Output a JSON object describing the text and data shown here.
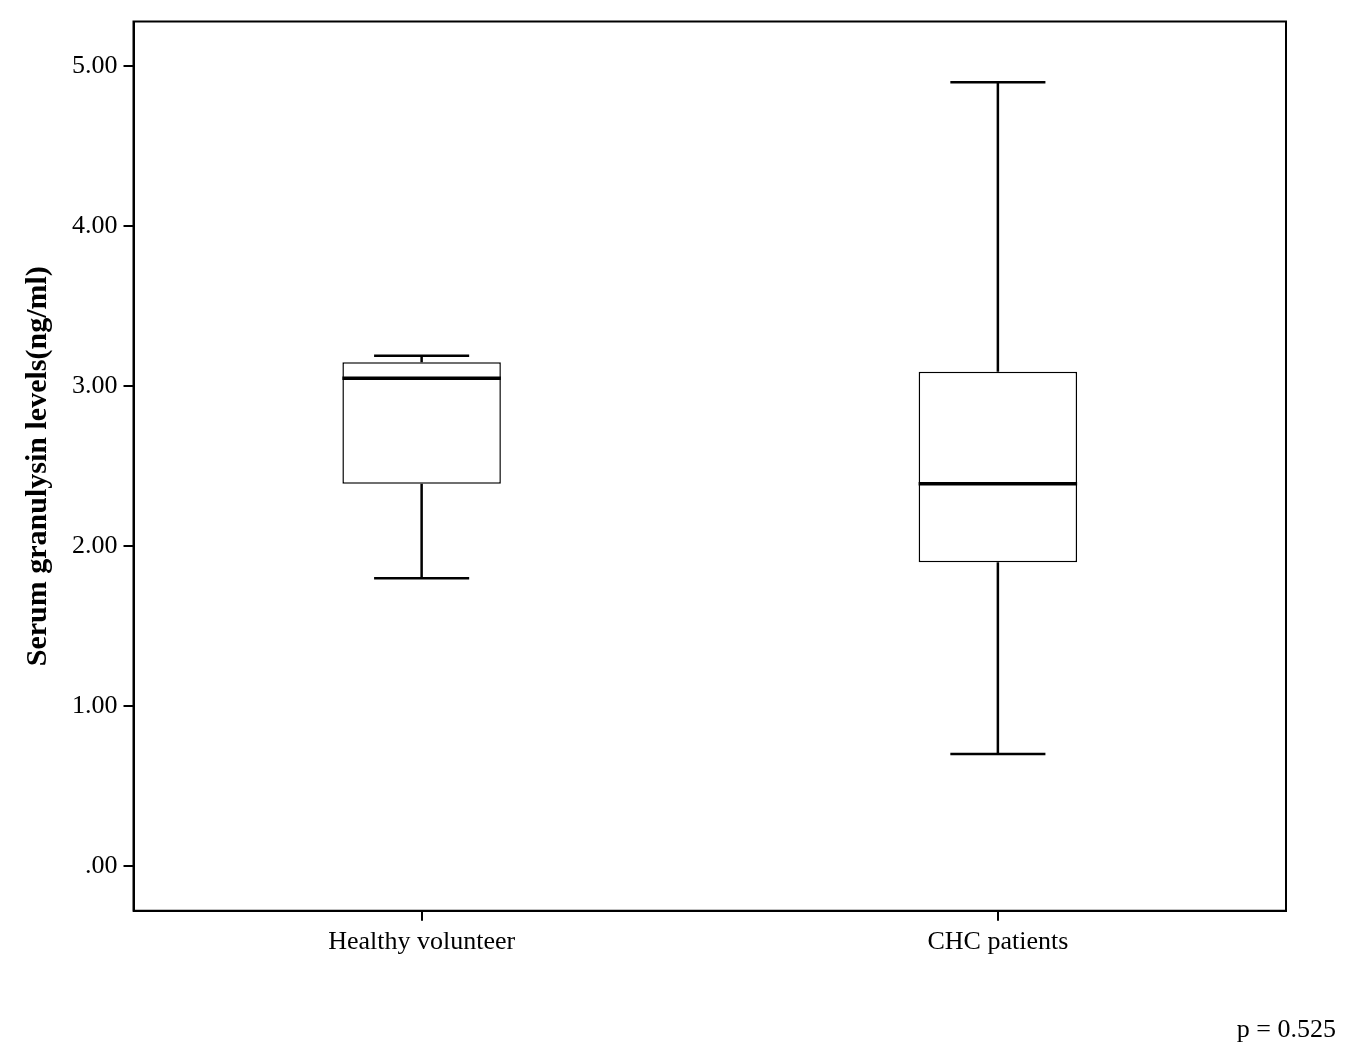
{
  "chart_data": {
    "type": "box",
    "ylabel": "Serum granulysin levels(ng/ml)",
    "categories": [
      "Healthy volunteer",
      "CHC patients"
    ],
    "boxes": [
      {
        "low": 1.8,
        "q1": 2.39,
        "median": 3.05,
        "q3": 3.15,
        "high": 3.19
      },
      {
        "low": 0.7,
        "q1": 1.9,
        "median": 2.39,
        "q3": 3.09,
        "high": 4.9
      }
    ],
    "color": "#000000",
    "ylim": [
      -0.28,
      5.28
    ],
    "yticks": [
      {
        "value": 0,
        "label": ".00"
      },
      {
        "value": 1,
        "label": "1.00"
      },
      {
        "value": 2,
        "label": "2.00"
      },
      {
        "value": 3,
        "label": "3.00"
      },
      {
        "value": 4,
        "label": "4.00"
      },
      {
        "value": 5,
        "label": "5.00"
      }
    ],
    "annotations": [
      "p = 0.525"
    ]
  }
}
